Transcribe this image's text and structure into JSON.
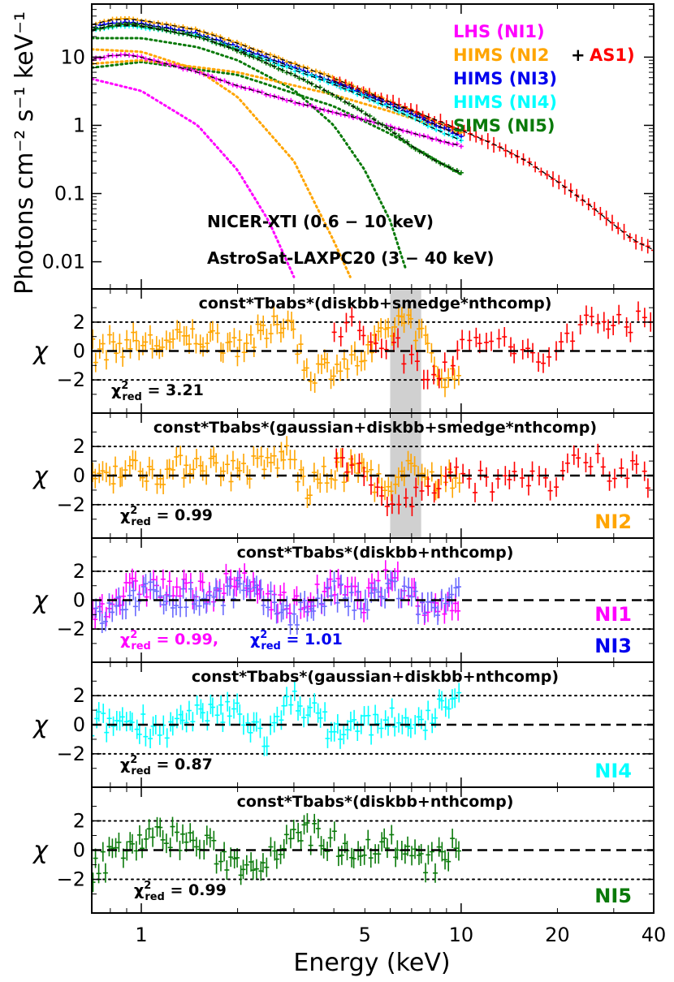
{
  "chart_data": [
    {
      "type": "scatter",
      "panel": "spectrum",
      "xlabel": "Energy (keV)",
      "ylabel": "Photons cm⁻² s⁻¹ keV⁻¹",
      "xscale": "log",
      "yscale": "log",
      "xlim": [
        0.7,
        40
      ],
      "ylim": [
        0.004,
        60
      ],
      "xticks": [
        {
          "v": 1,
          "label": "1"
        },
        {
          "v": 5,
          "label": "5"
        },
        {
          "v": 10,
          "label": "10"
        },
        {
          "v": 20,
          "label": "20"
        },
        {
          "v": 40,
          "label": "40"
        }
      ],
      "yticks": [
        {
          "v": 0.01,
          "label": "0.01"
        },
        {
          "v": 0.1,
          "label": "0.1"
        },
        {
          "v": 1,
          "label": "1"
        },
        {
          "v": 10,
          "label": "10"
        }
      ],
      "annotations": [
        "NICER-XTI (0.6 − 10 keV)",
        "AstroSat-LAXPC20 (3 − 40 keV)"
      ],
      "legend": [
        {
          "name": "LHS (NI1)",
          "color": "#ff00ff"
        },
        {
          "name": "HIMS (NI2",
          "color": "#ffa500"
        },
        {
          "name": "+",
          "color": "#000000"
        },
        {
          "name": "AS1)",
          "color": "#ff0000"
        },
        {
          "name": "HIMS (NI3)",
          "color": "#0000ee"
        },
        {
          "name": "HIMS (NI4)",
          "color": "#00ffff"
        },
        {
          "name": "SIMS (NI5)",
          "color": "#0a7a0a"
        }
      ],
      "series": [
        {
          "name": "NI1",
          "color": "#ff00ff",
          "x": [
            0.7,
            0.8,
            0.9,
            1.0,
            1.5,
            2.0,
            3.0,
            4.0,
            5.0,
            6.0,
            7.0,
            8.0,
            10.0
          ],
          "y": [
            9.2,
            10.5,
            10.8,
            10.0,
            6.0,
            3.8,
            2.2,
            1.55,
            1.2,
            0.95,
            0.78,
            0.65,
            0.5
          ]
        },
        {
          "name": "NI2",
          "color": "#ffa500",
          "x": [
            0.7,
            0.8,
            0.9,
            1.0,
            1.5,
            2.0,
            3.0,
            4.0,
            5.0,
            6.0,
            7.0,
            8.0,
            10.0
          ],
          "y": [
            30,
            35,
            36,
            35,
            25,
            16,
            8.0,
            4.9,
            3.2,
            2.2,
            1.6,
            1.2,
            0.8
          ]
        },
        {
          "name": "AS1",
          "color": "#ff0000",
          "x": [
            4.0,
            5.0,
            6.0,
            8.0,
            10.0,
            13.0,
            16.0,
            20.0,
            25.0,
            30.0,
            35.0,
            40.0
          ],
          "y": [
            4.5,
            3.0,
            2.2,
            1.3,
            0.85,
            0.5,
            0.3,
            0.15,
            0.07,
            0.035,
            0.02,
            0.015
          ]
        },
        {
          "name": "NI3",
          "color": "#0000ee",
          "x": [
            0.7,
            0.8,
            0.9,
            1.0,
            1.5,
            2.0,
            3.0,
            4.0,
            5.0,
            6.0,
            7.0,
            8.0,
            10.0
          ],
          "y": [
            27,
            31,
            32,
            31,
            22,
            14,
            7.0,
            4.3,
            2.8,
            2.0,
            1.45,
            1.1,
            0.7
          ]
        },
        {
          "name": "NI4",
          "color": "#00ffff",
          "x": [
            0.7,
            0.8,
            0.9,
            1.0,
            1.5,
            2.0,
            3.0,
            4.0,
            5.0,
            6.0,
            7.0,
            8.0,
            10.0
          ],
          "y": [
            24,
            28,
            29,
            28,
            20,
            13,
            6.5,
            4.0,
            2.6,
            1.8,
            1.3,
            0.95,
            0.6
          ]
        },
        {
          "name": "NI5",
          "color": "#0a7a0a",
          "x": [
            0.7,
            0.8,
            0.9,
            1.0,
            1.5,
            2.0,
            3.0,
            4.0,
            5.0,
            6.0,
            7.0,
            8.0,
            10.0
          ],
          "y": [
            25,
            29,
            30,
            29,
            20,
            12.5,
            5.5,
            2.8,
            1.5,
            0.85,
            0.5,
            0.33,
            0.2
          ]
        }
      ],
      "components": [
        {
          "name": "NI1 diskbb",
          "color": "#ff00ff",
          "x": [
            0.7,
            1.0,
            1.5,
            2.0,
            2.5,
            3.0
          ],
          "y": [
            4.8,
            3.2,
            1.0,
            0.22,
            0.04,
            0.006
          ]
        },
        {
          "name": "NI2 diskbb",
          "color": "#ffa500",
          "x": [
            0.7,
            1.0,
            1.5,
            2.0,
            3.0,
            4.0,
            4.5
          ],
          "y": [
            13,
            12,
            6.5,
            2.6,
            0.3,
            0.02,
            0.006
          ]
        },
        {
          "name": "NI5 diskbb",
          "color": "#0a7a0a",
          "x": [
            0.7,
            1.0,
            1.5,
            2.0,
            3.0,
            4.0,
            5.0,
            6.0,
            6.7
          ],
          "y": [
            19,
            19,
            14,
            9.0,
            3.3,
            1.0,
            0.22,
            0.04,
            0.008
          ]
        },
        {
          "name": "NI5 nthcomp",
          "color": "#0a7a0a",
          "x": [
            0.7,
            1.0,
            2.0,
            4.0,
            6.0,
            10.0
          ],
          "y": [
            7.0,
            8.5,
            5.5,
            1.9,
            0.75,
            0.19
          ]
        },
        {
          "name": "NI2 nthcomp",
          "color": "#ffa500",
          "x": [
            0.7,
            1.0,
            2.0,
            4.0,
            6.0,
            10.0
          ],
          "y": [
            8.0,
            9.0,
            6.0,
            2.8,
            1.6,
            0.75
          ]
        }
      ]
    },
    {
      "type": "scatter",
      "panel": "residual-1",
      "title": "const*Tbabs*(diskbb+smedge*nthcomp)",
      "ylabel": "χ",
      "ylim": [
        -4.3,
        4.3
      ],
      "yticks": [
        {
          "v": 2,
          "label": "2"
        },
        {
          "v": 0,
          "label": "0"
        },
        {
          "v": -2,
          "label": "−2"
        }
      ],
      "chi2_red": [
        {
          "label": "χ²red = 3.21",
          "color": "#000000"
        }
      ],
      "series": [
        {
          "name": "NI2",
          "color": "#ffa500",
          "x": [
            0.7,
            0.9,
            1.2,
            1.5,
            2.0,
            2.5,
            2.9,
            3.3,
            4.0,
            5.0,
            6.0,
            6.8,
            7.5,
            8.5,
            10.0
          ],
          "y": [
            0.0,
            0.5,
            0.5,
            1.0,
            0.5,
            1.2,
            2.5,
            -1.5,
            -1.0,
            -0.5,
            1.5,
            2.5,
            1.0,
            -1.5,
            -2.0
          ]
        },
        {
          "name": "AS1",
          "color": "#ff0000",
          "x": [
            4.0,
            6.0,
            8.0,
            10.0,
            12.0,
            15.0,
            18.0,
            22.0,
            26.0,
            30.0,
            35.0,
            40.0
          ],
          "y": [
            2.0,
            0.5,
            -1.5,
            0.0,
            1.0,
            0.0,
            -1.0,
            1.5,
            2.0,
            2.5,
            2.0,
            1.5
          ]
        }
      ]
    },
    {
      "type": "scatter",
      "panel": "residual-2",
      "title": "const*Tbabs*(gaussian+diskbb+smedge*nthcomp)",
      "ylabel": "χ",
      "ylim": [
        -4.3,
        4.3
      ],
      "yticks": [
        {
          "v": 2,
          "label": "2"
        },
        {
          "v": 0,
          "label": "0"
        },
        {
          "v": -2,
          "label": "−2"
        }
      ],
      "chi2_red": [
        {
          "label": "χ²red = 0.99",
          "color": "#000000"
        }
      ],
      "tags": [
        {
          "text": "NI2",
          "color": "#ffa500"
        }
      ],
      "series": [
        {
          "name": "NI2",
          "color": "#ffa500",
          "x": [
            0.7,
            0.9,
            1.2,
            1.5,
            2.0,
            2.5,
            2.9,
            3.3,
            4.0,
            5.0,
            6.0,
            6.8,
            7.5,
            8.5,
            10.0
          ],
          "y": [
            0.0,
            0.5,
            0.2,
            1.0,
            0.3,
            0.8,
            1.5,
            -1.0,
            0.3,
            0.5,
            -1.5,
            0.2,
            1.0,
            -0.8,
            0.0
          ]
        },
        {
          "name": "AS1",
          "color": "#ff0000",
          "x": [
            4.0,
            6.0,
            8.0,
            10.0,
            12.0,
            15.0,
            18.0,
            22.0,
            26.0,
            30.0,
            35.0,
            40.0
          ],
          "y": [
            2.0,
            -2.0,
            -1.0,
            0.0,
            -0.5,
            0.5,
            -1.0,
            0.5,
            0.8,
            0.0,
            0.5,
            -0.5
          ]
        }
      ]
    },
    {
      "type": "scatter",
      "panel": "residual-3",
      "title": "const*Tbabs*(diskbb+nthcomp)",
      "ylabel": "χ",
      "ylim": [
        -4.3,
        4.3
      ],
      "yticks": [
        {
          "v": 2,
          "label": "2"
        },
        {
          "v": 0,
          "label": "0"
        },
        {
          "v": -2,
          "label": "−2"
        }
      ],
      "chi2_red": [
        {
          "label": "χ²red = 0.99,",
          "color": "#ff00ff"
        },
        {
          "label": "χ²red = 1.01",
          "color": "#0000ee"
        }
      ],
      "tags": [
        {
          "text": "NI1",
          "color": "#ff00ff"
        },
        {
          "text": "NI3",
          "color": "#0000ee"
        }
      ],
      "series": [
        {
          "name": "NI1",
          "color": "#ff00ff",
          "x": [
            0.7,
            1.0,
            1.5,
            2.0,
            3.0,
            4.0,
            5.0,
            6.0,
            7.0,
            8.0,
            10.0
          ],
          "y": [
            -0.8,
            1.0,
            0.5,
            1.2,
            -0.5,
            0.8,
            0.0,
            1.5,
            0.5,
            -0.5,
            0.0
          ]
        },
        {
          "name": "NI3",
          "color": "#6a6aff",
          "x": [
            0.7,
            1.0,
            1.5,
            2.0,
            3.0,
            4.0,
            5.0,
            6.0,
            7.0,
            8.0,
            10.0
          ],
          "y": [
            -1.5,
            0.5,
            0.0,
            0.8,
            -1.0,
            0.5,
            -0.5,
            1.0,
            0.0,
            -0.8,
            0.3
          ]
        }
      ]
    },
    {
      "type": "scatter",
      "panel": "residual-4",
      "title": "const*Tbabs*(gaussian+diskbb+nthcomp)",
      "ylabel": "χ",
      "ylim": [
        -4.3,
        4.3
      ],
      "yticks": [
        {
          "v": 2,
          "label": "2"
        },
        {
          "v": 0,
          "label": "0"
        },
        {
          "v": -2,
          "label": "−2"
        }
      ],
      "chi2_red": [
        {
          "label": "χ²red = 0.87",
          "color": "#000000"
        }
      ],
      "tags": [
        {
          "text": "NI4",
          "color": "#00ffff"
        }
      ],
      "series": [
        {
          "name": "NI4",
          "color": "#00ffff",
          "x": [
            0.7,
            0.9,
            1.2,
            1.5,
            2.0,
            2.5,
            3.0,
            4.0,
            5.0,
            6.0,
            7.0,
            8.0,
            10.0
          ],
          "y": [
            0.0,
            0.3,
            -0.3,
            0.5,
            1.0,
            -1.0,
            2.0,
            -0.5,
            0.0,
            0.5,
            -0.5,
            0.8,
            1.5
          ]
        }
      ]
    },
    {
      "type": "scatter",
      "panel": "residual-5",
      "title": "const*Tbabs*(diskbb+nthcomp)",
      "ylabel": "χ",
      "ylim": [
        -4.3,
        4.3
      ],
      "yticks": [
        {
          "v": 2,
          "label": "2"
        },
        {
          "v": 0,
          "label": "0"
        },
        {
          "v": -2,
          "label": "−2"
        }
      ],
      "chi2_red": [
        {
          "label": "χ²red = 0.99",
          "color": "#000000"
        }
      ],
      "tags": [
        {
          "text": "NI5",
          "color": "#0a7a0a"
        }
      ],
      "series": [
        {
          "name": "NI5",
          "color": "#0a7a0a",
          "x": [
            0.7,
            0.9,
            1.2,
            1.5,
            2.0,
            2.5,
            3.0,
            4.0,
            5.0,
            6.0,
            7.0,
            8.0,
            10.0
          ],
          "y": [
            -1.5,
            0.5,
            1.0,
            0.5,
            -1.0,
            -0.5,
            1.5,
            0.5,
            0.0,
            0.5,
            -0.5,
            -1.0,
            0.5
          ]
        }
      ]
    }
  ],
  "shaded_band_kev": [
    6.0,
    7.5
  ]
}
